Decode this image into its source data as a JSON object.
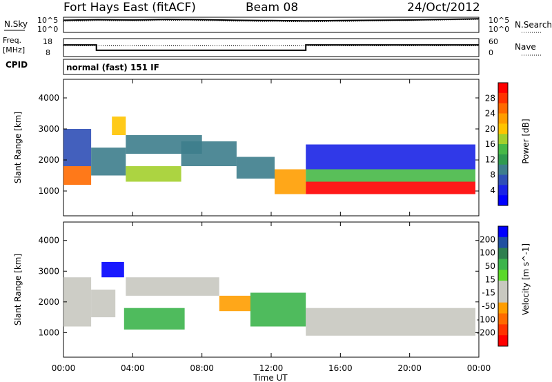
{
  "header": {
    "station": "Fort Hays East (fitACF)",
    "beam": "Beam 08",
    "date": "24/Oct/2012"
  },
  "noise_panel": {
    "left_label": "N.Sky",
    "right_label": "N.Search",
    "left_ticks": [
      "10^5",
      "10^0"
    ],
    "right_ticks": [
      "10^5",
      "10^0"
    ]
  },
  "freq_panel": {
    "left_label_1": "Freq.",
    "left_label_2": "[MHz]",
    "right_label": "Nave",
    "left_ticks": [
      "18",
      "8"
    ],
    "right_ticks": [
      "60",
      "0"
    ]
  },
  "cpid_panel": {
    "label": "CPID",
    "mode": "normal (fast) 151 IF"
  },
  "x_axis": {
    "label": "Time UT",
    "ticks": [
      "00:00",
      "04:00",
      "08:00",
      "12:00",
      "16:00",
      "20:00",
      "00:00"
    ]
  },
  "colorbars": {
    "power": {
      "label": "Power [dB]",
      "ticks": [
        "28",
        "24",
        "20",
        "16",
        "12",
        "8",
        "4"
      ],
      "colors": [
        "#ff0000",
        "#ff3300",
        "#ff6a00",
        "#ff9d00",
        "#ffc400",
        "#a3cf2c",
        "#47b847",
        "#2f9a4f",
        "#3d7d8c",
        "#2f4fb6",
        "#1a23e6",
        "#0000ff"
      ]
    },
    "velocity": {
      "label": "Velocity [m s^-1]",
      "ticks": [
        "200",
        "100",
        "50",
        "15",
        "-15",
        "-50",
        "-100",
        "-200"
      ],
      "colors": [
        "#0000ff",
        "#2050a0",
        "#2e7f4f",
        "#3cb44b",
        "#5bd82a",
        "#c8c8c0",
        "#c8c8c0",
        "#ff9d00",
        "#ff6a00",
        "#ff3300",
        "#ff0000"
      ]
    }
  },
  "chart_data": [
    {
      "type": "line",
      "title": "N.Sky / N.Search",
      "x": [
        0,
        2,
        4,
        6,
        8,
        10,
        12,
        14,
        16,
        18,
        20,
        22,
        24
      ],
      "series": [
        {
          "name": "N.Sky",
          "values": [
            4.0,
            4.2,
            4.1,
            4.3,
            4.2,
            4.0,
            3.9,
            3.8,
            3.9,
            4.0,
            4.1,
            4.3,
            4.5
          ]
        },
        {
          "name": "N.Search",
          "values": [
            3.6,
            3.9,
            3.8,
            4.0,
            3.9,
            3.7,
            3.6,
            3.5,
            3.6,
            3.8,
            3.9,
            4.1,
            4.3
          ]
        }
      ],
      "ylim": [
        0,
        5
      ]
    },
    {
      "type": "line",
      "title": "Freq. / Nave",
      "x": [
        0,
        1.9,
        1.9,
        14.0,
        14.0,
        24
      ],
      "series": [
        {
          "name": "Freq.",
          "values": [
            14.5,
            14.5,
            11.5,
            11.5,
            14.5,
            14.5
          ]
        },
        {
          "name": "Nave",
          "values": [
            14,
            14,
            14,
            14,
            14,
            14
          ]
        }
      ],
      "ylim": [
        8,
        18
      ]
    },
    {
      "type": "heatmap",
      "title": "Power [dB]",
      "xlabel": "Time UT",
      "ylabel": "Slant Range [km]",
      "xlim": [
        0,
        24
      ],
      "ylim": [
        200,
        4600
      ],
      "zlim": [
        0,
        30
      ],
      "regions": [
        {
          "t0": 0.0,
          "t1": 1.6,
          "r0": 1200,
          "r1": 1800,
          "v": 24
        },
        {
          "t0": 0.0,
          "t1": 1.6,
          "r0": 1800,
          "r1": 3000,
          "v": 6
        },
        {
          "t0": 1.6,
          "t1": 3.6,
          "r0": 1500,
          "r1": 2400,
          "v": 8
        },
        {
          "t0": 2.8,
          "t1": 3.6,
          "r0": 2800,
          "r1": 3400,
          "v": 18
        },
        {
          "t0": 3.6,
          "t1": 6.8,
          "r0": 1300,
          "r1": 1800,
          "v": 16
        },
        {
          "t0": 3.6,
          "t1": 8.0,
          "r0": 2200,
          "r1": 2800,
          "v": 10
        },
        {
          "t0": 6.8,
          "t1": 10.0,
          "r0": 1800,
          "r1": 2600,
          "v": 10
        },
        {
          "t0": 10.0,
          "t1": 12.2,
          "r0": 1400,
          "r1": 2100,
          "v": 8
        },
        {
          "t0": 12.2,
          "t1": 14.0,
          "r0": 900,
          "r1": 1700,
          "v": 22
        },
        {
          "t0": 14.0,
          "t1": 23.8,
          "r0": 900,
          "r1": 1300,
          "v": 28
        },
        {
          "t0": 14.0,
          "t1": 23.8,
          "r0": 1300,
          "r1": 1700,
          "v": 14
        },
        {
          "t0": 14.0,
          "t1": 23.8,
          "r0": 1700,
          "r1": 2500,
          "v": 5
        }
      ]
    },
    {
      "type": "heatmap",
      "title": "Velocity [m s^-1]",
      "xlabel": "Time UT",
      "ylabel": "Slant Range [km]",
      "xlim": [
        0,
        24
      ],
      "ylim": [
        200,
        4600
      ],
      "zlim": [
        -200,
        200
      ],
      "regions": [
        {
          "t0": 0.0,
          "t1": 1.6,
          "r0": 1200,
          "r1": 2800,
          "v": 0
        },
        {
          "t0": 1.6,
          "t1": 3.0,
          "r0": 1500,
          "r1": 2400,
          "v": 0
        },
        {
          "t0": 2.2,
          "t1": 3.5,
          "r0": 2800,
          "r1": 3300,
          "v": 150
        },
        {
          "t0": 3.5,
          "t1": 7.0,
          "r0": 1100,
          "r1": 1800,
          "v": 40
        },
        {
          "t0": 3.6,
          "t1": 9.0,
          "r0": 2200,
          "r1": 2800,
          "v": 0
        },
        {
          "t0": 9.0,
          "t1": 10.8,
          "r0": 1700,
          "r1": 2200,
          "v": -60
        },
        {
          "t0": 10.8,
          "t1": 14.0,
          "r0": 1200,
          "r1": 2300,
          "v": 40
        },
        {
          "t0": 14.0,
          "t1": 23.8,
          "r0": 900,
          "r1": 1800,
          "v": 0
        }
      ]
    }
  ]
}
